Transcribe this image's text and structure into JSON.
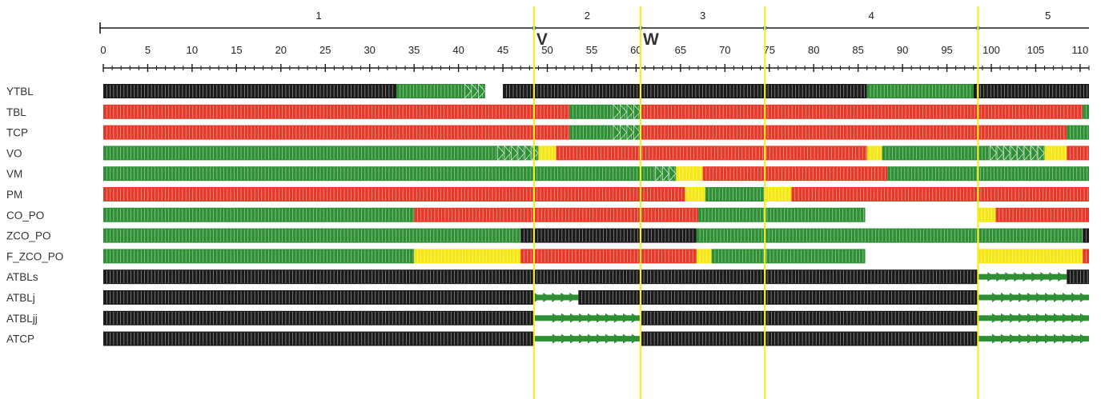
{
  "colors": {
    "black": "#1b1b1b",
    "red": "#e5392a",
    "green": "#2f8f35",
    "yellow": "#f5e714",
    "marker_line": "#f2ee2a",
    "axis": "#1a1a1a",
    "stage_dot": "#2f5fa5"
  },
  "axis": {
    "min": 0,
    "max": 111,
    "tick_labels": [
      "0",
      "5",
      "10",
      "15",
      "20",
      "25",
      "30",
      "35",
      "40",
      "45",
      "50",
      "55",
      "60",
      "65",
      "70",
      "75",
      "80",
      "85",
      "90",
      "95",
      "100",
      "105",
      "110"
    ]
  },
  "stages": [
    {
      "label": "1",
      "start": 0,
      "end": 48.5
    },
    {
      "label": "2",
      "start": 48.5,
      "end": 60.5
    },
    {
      "label": "3",
      "start": 60.5,
      "end": 74.5
    },
    {
      "label": "4",
      "start": 74.5,
      "end": 98.5
    },
    {
      "label": "5",
      "start": 98.5,
      "end": 111
    }
  ],
  "markers": [
    {
      "label": "V",
      "at": 48.5
    },
    {
      "label": "W",
      "at": 60.5
    }
  ],
  "vertical_lines": [
    48.5,
    60.5,
    74.5,
    98.5
  ],
  "chart_data": {
    "type": "timeline",
    "x_range": [
      0,
      111
    ],
    "legend": [],
    "rows": [
      {
        "name": "YTBL",
        "segments": [
          {
            "from": 0,
            "to": 33,
            "state": "black"
          },
          {
            "from": 33,
            "to": 43,
            "state": "green",
            "arrows": 3
          },
          {
            "from": 43,
            "to": 45,
            "state": "white"
          },
          {
            "from": 45,
            "to": 86,
            "state": "black"
          },
          {
            "from": 86,
            "to": 98,
            "state": "green"
          },
          {
            "from": 98,
            "to": 111,
            "state": "black"
          }
        ]
      },
      {
        "name": "TBL",
        "segments": [
          {
            "from": 0,
            "to": 52.5,
            "state": "red"
          },
          {
            "from": 52.5,
            "to": 60.5,
            "state": "green",
            "arrows": 4
          },
          {
            "from": 60.5,
            "to": 110.3,
            "state": "red"
          },
          {
            "from": 110.3,
            "to": 111,
            "state": "green"
          }
        ]
      },
      {
        "name": "TCP",
        "segments": [
          {
            "from": 0,
            "to": 52.5,
            "state": "red"
          },
          {
            "from": 52.5,
            "to": 60.5,
            "state": "green",
            "arrows": 4
          },
          {
            "from": 60.5,
            "to": 108.5,
            "state": "red"
          },
          {
            "from": 108.5,
            "to": 111,
            "state": "green"
          }
        ]
      },
      {
        "name": "VO",
        "segments": [
          {
            "from": 0,
            "to": 49,
            "state": "green",
            "arrows": 6
          },
          {
            "from": 49,
            "to": 51,
            "state": "yellow"
          },
          {
            "from": 51,
            "to": 86,
            "state": "red"
          },
          {
            "from": 86,
            "to": 87.7,
            "state": "yellow"
          },
          {
            "from": 87.7,
            "to": 106,
            "state": "green",
            "arrows": 8
          },
          {
            "from": 106,
            "to": 108.5,
            "state": "yellow"
          },
          {
            "from": 108.5,
            "to": 111,
            "state": "red"
          }
        ]
      },
      {
        "name": "VM",
        "segments": [
          {
            "from": 0,
            "to": 64.5,
            "state": "green",
            "arrows": 3
          },
          {
            "from": 64.5,
            "to": 67.5,
            "state": "yellow"
          },
          {
            "from": 67.5,
            "to": 88.3,
            "state": "red"
          },
          {
            "from": 88.3,
            "to": 111,
            "state": "green"
          }
        ]
      },
      {
        "name": "PM",
        "segments": [
          {
            "from": 0,
            "to": 65.5,
            "state": "red"
          },
          {
            "from": 65.5,
            "to": 67.8,
            "state": "yellow"
          },
          {
            "from": 67.8,
            "to": 74.5,
            "state": "green"
          },
          {
            "from": 74.5,
            "to": 77.5,
            "state": "yellow"
          },
          {
            "from": 77.5,
            "to": 111,
            "state": "red"
          }
        ]
      },
      {
        "name": "CO_PO",
        "segments": [
          {
            "from": 0,
            "to": 35,
            "state": "green"
          },
          {
            "from": 35,
            "to": 67,
            "state": "red"
          },
          {
            "from": 67,
            "to": 85.8,
            "state": "green"
          },
          {
            "from": 85.8,
            "to": 98.5,
            "state": "white"
          },
          {
            "from": 98.5,
            "to": 100.5,
            "state": "yellow"
          },
          {
            "from": 100.5,
            "to": 111,
            "state": "red"
          }
        ]
      },
      {
        "name": "ZCO_PO",
        "segments": [
          {
            "from": 0,
            "to": 47,
            "state": "green"
          },
          {
            "from": 47,
            "to": 66.8,
            "state": "black"
          },
          {
            "from": 66.8,
            "to": 110.3,
            "state": "green"
          },
          {
            "from": 110.3,
            "to": 111,
            "state": "black"
          }
        ]
      },
      {
        "name": "F_ZCO_PO",
        "segments": [
          {
            "from": 0,
            "to": 35,
            "state": "green"
          },
          {
            "from": 35,
            "to": 47,
            "state": "yellow"
          },
          {
            "from": 47,
            "to": 66.8,
            "state": "red"
          },
          {
            "from": 66.8,
            "to": 68.5,
            "state": "yellow"
          },
          {
            "from": 68.5,
            "to": 85.8,
            "state": "green"
          },
          {
            "from": 85.8,
            "to": 98.5,
            "state": "white"
          },
          {
            "from": 98.5,
            "to": 110.3,
            "state": "yellow"
          },
          {
            "from": 110.3,
            "to": 111,
            "state": "red"
          }
        ]
      },
      {
        "name": "ATBLs",
        "segments": [
          {
            "from": 0,
            "to": 98.5,
            "state": "black"
          },
          {
            "from": 98.5,
            "to": 108.5,
            "state": "green",
            "arrows": 9,
            "thin": true
          },
          {
            "from": 108.5,
            "to": 111,
            "state": "black"
          }
        ]
      },
      {
        "name": "ATBLj",
        "segments": [
          {
            "from": 0,
            "to": 48.5,
            "state": "black"
          },
          {
            "from": 48.5,
            "to": 53.5,
            "state": "green",
            "arrows": 5,
            "thin": true
          },
          {
            "from": 53.5,
            "to": 98.5,
            "state": "black"
          },
          {
            "from": 98.5,
            "to": 111,
            "state": "green",
            "arrows": 11,
            "thin": true
          }
        ]
      },
      {
        "name": "ATBLjj",
        "segments": [
          {
            "from": 0,
            "to": 48.5,
            "state": "black"
          },
          {
            "from": 48.5,
            "to": 60.5,
            "state": "green",
            "arrows": 10,
            "thin": true
          },
          {
            "from": 60.5,
            "to": 98.5,
            "state": "black"
          },
          {
            "from": 98.5,
            "to": 111,
            "state": "green",
            "arrows": 11,
            "thin": true
          }
        ]
      },
      {
        "name": "ATCP",
        "segments": [
          {
            "from": 0,
            "to": 48.5,
            "state": "black"
          },
          {
            "from": 48.5,
            "to": 60.5,
            "state": "green",
            "arrows": 10,
            "thin": true
          },
          {
            "from": 60.5,
            "to": 98.5,
            "state": "black"
          },
          {
            "from": 98.5,
            "to": 111,
            "state": "green",
            "arrows": 11,
            "thin": true
          }
        ]
      }
    ]
  }
}
